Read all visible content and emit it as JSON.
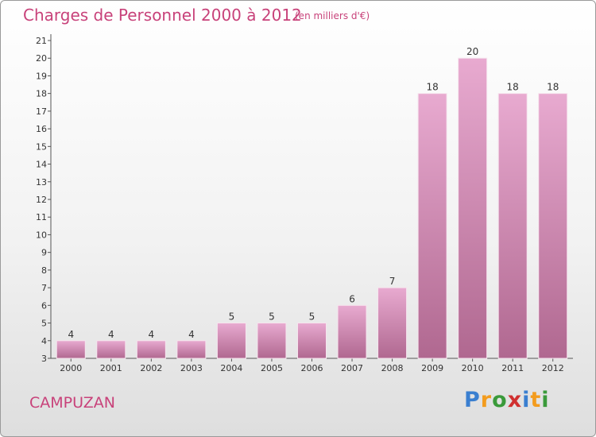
{
  "header": {
    "title": "Charges de Personnel 2000 à 2012",
    "subtitle": "(en milliers d'€)"
  },
  "footer": {
    "commune": "CAMPUZAN",
    "logo": {
      "text": "Proxiti",
      "letters": [
        "P",
        "r",
        "o",
        "x",
        "i",
        "t",
        "i"
      ],
      "colors": [
        "#3a7fd0",
        "#f39c1e",
        "#3a9a3a",
        "#d03030",
        "#3a7fd0",
        "#f39c1e",
        "#3a9a3a"
      ]
    }
  },
  "colors": {
    "accent": "#c8427a",
    "bar_top": "#e8aad0",
    "bar_bottom": "#b06890"
  },
  "chart_data": {
    "type": "bar",
    "categories": [
      "2000",
      "2001",
      "2002",
      "2003",
      "2004",
      "2005",
      "2006",
      "2007",
      "2008",
      "2009",
      "2010",
      "2011",
      "2012"
    ],
    "values": [
      4,
      4,
      4,
      4,
      5,
      5,
      5,
      6,
      7,
      18,
      20,
      18,
      18
    ],
    "ylim": [
      3,
      21
    ],
    "yticks": [
      3,
      4,
      5,
      6,
      7,
      8,
      9,
      10,
      11,
      12,
      13,
      14,
      15,
      16,
      17,
      18,
      19,
      20,
      21
    ],
    "xlabel": "",
    "ylabel": "",
    "grid": false,
    "data_labels": true
  }
}
